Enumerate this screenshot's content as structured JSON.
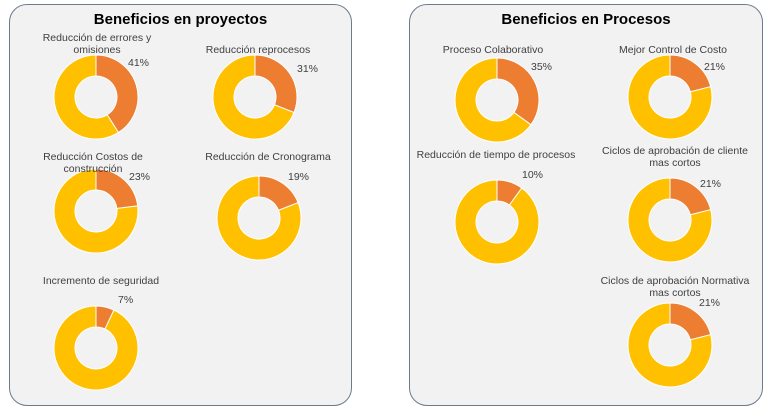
{
  "colors": {
    "highlight": "#ed7d31",
    "base": "#ffc000"
  },
  "panels": {
    "left": {
      "title": "Beneficios en proyectos"
    },
    "right": {
      "title": "Beneficios en Procesos"
    }
  },
  "chart_data": [
    {
      "type": "pie",
      "title_lines": [
        "Reducción de errores y",
        "omisiones"
      ],
      "value": 41,
      "label": "41%"
    },
    {
      "type": "pie",
      "title_lines": [
        "Reducción reprocesos"
      ],
      "value": 31,
      "label": "31%"
    },
    {
      "type": "pie",
      "title_lines": [
        "Reducción Costos de",
        "construcción"
      ],
      "value": 23,
      "label": "23%"
    },
    {
      "type": "pie",
      "title_lines": [
        "Reducción de Cronograma"
      ],
      "value": 19,
      "label": "19%"
    },
    {
      "type": "pie",
      "title_lines": [
        "Incremento de seguridad"
      ],
      "value": 7,
      "label": "7%"
    },
    {
      "type": "pie",
      "title_lines": [
        "Proceso Colaborativo"
      ],
      "value": 35,
      "label": "35%"
    },
    {
      "type": "pie",
      "title_lines": [
        "Mejor Control de Costo"
      ],
      "value": 21,
      "label": "21%"
    },
    {
      "type": "pie",
      "title_lines": [
        "Reducción de tiempo de procesos"
      ],
      "value": 10,
      "label": "10%"
    },
    {
      "type": "pie",
      "title_lines": [
        "Ciclos de aprobación de cliente",
        "mas cortos"
      ],
      "value": 21,
      "label": "21%"
    },
    {
      "type": "pie",
      "title_lines": [
        "Ciclos de aprobación Normativa",
        "mas cortos"
      ],
      "value": 21,
      "label": "21%"
    }
  ]
}
